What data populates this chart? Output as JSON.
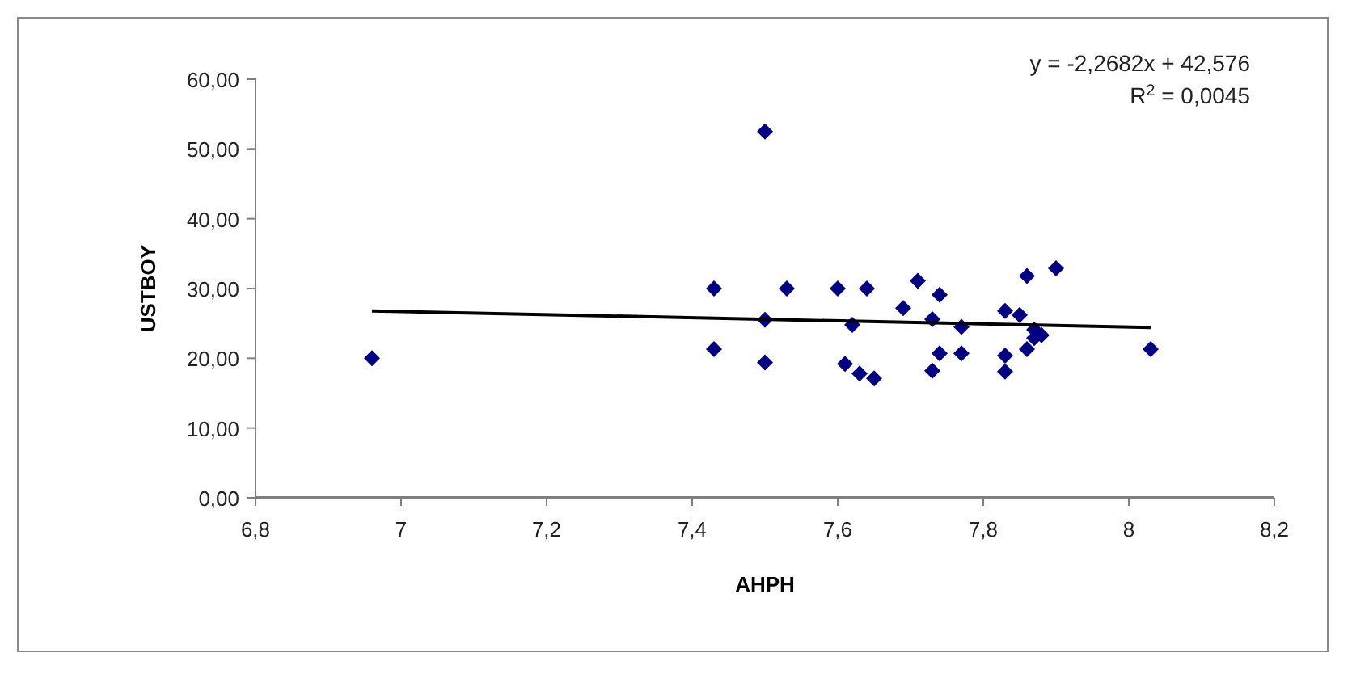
{
  "chart_data": {
    "type": "scatter",
    "xlabel": "AHPH",
    "ylabel": "USTBOY",
    "xlim": [
      6.8,
      8.2
    ],
    "xticks": [
      {
        "value": 6.8,
        "label": "6,8"
      },
      7,
      {
        "value": 7.2,
        "label": "7,2"
      },
      {
        "value": 7.4,
        "label": "7,4"
      },
      {
        "value": 7.6,
        "label": "7,6"
      },
      {
        "value": 7.8,
        "label": "7,8"
      },
      8,
      {
        "value": 8.2,
        "label": "8,2"
      }
    ],
    "ylim": [
      0,
      60
    ],
    "yticks": [
      {
        "value": 0,
        "label": "0,00"
      },
      {
        "value": 10,
        "label": "10,00"
      },
      {
        "value": 20,
        "label": "20,00"
      },
      {
        "value": 30,
        "label": "30,00"
      },
      {
        "value": 40,
        "label": "40,00"
      },
      {
        "value": 50,
        "label": "50,00"
      },
      {
        "value": 60,
        "label": "60,00"
      }
    ],
    "grid": false,
    "marker": "diamond",
    "annotations": [
      "y = -2,2682x + 42,576",
      "R$^{2}$ = 0,0045"
    ],
    "series": [
      {
        "color": "#000080",
        "x": [
          6.96,
          7.5,
          7.43,
          7.43,
          7.5,
          7.5,
          7.53,
          7.6,
          7.64,
          7.62,
          7.61,
          7.63,
          7.65,
          7.69,
          7.71,
          7.74,
          7.73,
          7.73,
          7.74,
          7.77,
          7.77,
          7.83,
          7.83,
          7.83,
          7.85,
          7.86,
          7.9,
          7.86,
          7.87,
          7.88,
          7.87,
          8.03
        ],
        "values": [
          20,
          52.5,
          30,
          21.3,
          25.5,
          19.4,
          30,
          30,
          30,
          24.8,
          19.2,
          17.8,
          17.1,
          27.2,
          31.1,
          29.1,
          25.6,
          18.2,
          20.7,
          24.5,
          20.7,
          26.8,
          20.4,
          18.1,
          26.2,
          31.8,
          32.9,
          21.3,
          22.9,
          23.3,
          24.1,
          21.3
        ]
      },
      {
        "type": "line",
        "color": "#000000",
        "marker": "none",
        "x": [
          6.96,
          8.03
        ],
        "values": [
          26.8,
          24.4
        ]
      }
    ]
  }
}
